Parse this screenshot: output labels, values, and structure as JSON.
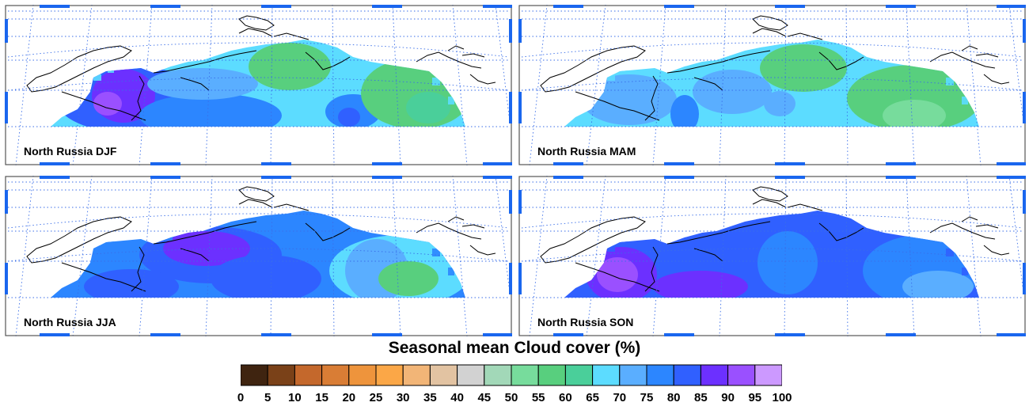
{
  "panels": [
    {
      "id": "djf",
      "label": "North Russia DJF"
    },
    {
      "id": "mam",
      "label": "North Russia MAM"
    },
    {
      "id": "jja",
      "label": "North Russia JJA"
    },
    {
      "id": "son",
      "label": "North Russia SON"
    }
  ],
  "colorbar": {
    "title": "Seasonal mean Cloud cover (%)",
    "ticks": [
      "0",
      "5",
      "10",
      "15",
      "20",
      "25",
      "30",
      "35",
      "40",
      "45",
      "50",
      "55",
      "60",
      "65",
      "70",
      "75",
      "80",
      "85",
      "90",
      "95",
      "100"
    ],
    "colors": [
      "#3f2410",
      "#7a4118",
      "#c4682c",
      "#d97d35",
      "#ee943c",
      "#fba747",
      "#f2b577",
      "#e2c3a2",
      "#d2d2d2",
      "#a2d8b8",
      "#77dc9c",
      "#58cf7e",
      "#4acf9a",
      "#5cdcff",
      "#5aaeff",
      "#2c86ff",
      "#3060ff",
      "#6c30ff",
      "#9a50ff",
      "#cc99ff"
    ]
  },
  "map_colors": {
    "frame_blue": "#1a66ee",
    "grid_blue": "#3a6ee8"
  }
}
